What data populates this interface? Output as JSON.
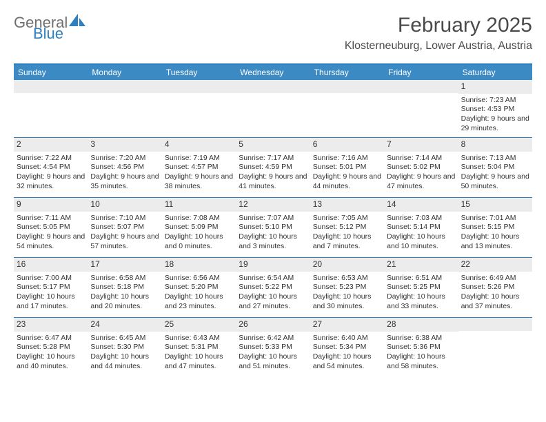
{
  "brand": {
    "part1": "General",
    "part2": "Blue",
    "text_color1": "#6f6f6f",
    "text_color2": "#2d7fbf",
    "icon_color": "#2d7fbf"
  },
  "title": {
    "month_year": "February 2025",
    "location": "Klosterneuburg, Lower Austria, Austria",
    "font_size_title": 30,
    "font_size_loc": 16
  },
  "theme": {
    "header_bar_color": "#3b8ac4",
    "header_text_color": "#ffffff",
    "divider_color": "#2d7fbf",
    "daynum_bg": "#ececec",
    "body_text_color": "#333333",
    "page_bg": "#ffffff",
    "body_font_size": 10.5
  },
  "weekdays": [
    "Sunday",
    "Monday",
    "Tuesday",
    "Wednesday",
    "Thursday",
    "Friday",
    "Saturday"
  ],
  "weeks": [
    [
      {
        "blank": true
      },
      {
        "blank": true
      },
      {
        "blank": true
      },
      {
        "blank": true
      },
      {
        "blank": true
      },
      {
        "blank": true
      },
      {
        "day": 1,
        "sunrise": "7:23 AM",
        "sunset": "4:53 PM",
        "daylight": "9 hours and 29 minutes."
      }
    ],
    [
      {
        "day": 2,
        "sunrise": "7:22 AM",
        "sunset": "4:54 PM",
        "daylight": "9 hours and 32 minutes."
      },
      {
        "day": 3,
        "sunrise": "7:20 AM",
        "sunset": "4:56 PM",
        "daylight": "9 hours and 35 minutes."
      },
      {
        "day": 4,
        "sunrise": "7:19 AM",
        "sunset": "4:57 PM",
        "daylight": "9 hours and 38 minutes."
      },
      {
        "day": 5,
        "sunrise": "7:17 AM",
        "sunset": "4:59 PM",
        "daylight": "9 hours and 41 minutes."
      },
      {
        "day": 6,
        "sunrise": "7:16 AM",
        "sunset": "5:01 PM",
        "daylight": "9 hours and 44 minutes."
      },
      {
        "day": 7,
        "sunrise": "7:14 AM",
        "sunset": "5:02 PM",
        "daylight": "9 hours and 47 minutes."
      },
      {
        "day": 8,
        "sunrise": "7:13 AM",
        "sunset": "5:04 PM",
        "daylight": "9 hours and 50 minutes."
      }
    ],
    [
      {
        "day": 9,
        "sunrise": "7:11 AM",
        "sunset": "5:05 PM",
        "daylight": "9 hours and 54 minutes."
      },
      {
        "day": 10,
        "sunrise": "7:10 AM",
        "sunset": "5:07 PM",
        "daylight": "9 hours and 57 minutes."
      },
      {
        "day": 11,
        "sunrise": "7:08 AM",
        "sunset": "5:09 PM",
        "daylight": "10 hours and 0 minutes."
      },
      {
        "day": 12,
        "sunrise": "7:07 AM",
        "sunset": "5:10 PM",
        "daylight": "10 hours and 3 minutes."
      },
      {
        "day": 13,
        "sunrise": "7:05 AM",
        "sunset": "5:12 PM",
        "daylight": "10 hours and 7 minutes."
      },
      {
        "day": 14,
        "sunrise": "7:03 AM",
        "sunset": "5:14 PM",
        "daylight": "10 hours and 10 minutes."
      },
      {
        "day": 15,
        "sunrise": "7:01 AM",
        "sunset": "5:15 PM",
        "daylight": "10 hours and 13 minutes."
      }
    ],
    [
      {
        "day": 16,
        "sunrise": "7:00 AM",
        "sunset": "5:17 PM",
        "daylight": "10 hours and 17 minutes."
      },
      {
        "day": 17,
        "sunrise": "6:58 AM",
        "sunset": "5:18 PM",
        "daylight": "10 hours and 20 minutes."
      },
      {
        "day": 18,
        "sunrise": "6:56 AM",
        "sunset": "5:20 PM",
        "daylight": "10 hours and 23 minutes."
      },
      {
        "day": 19,
        "sunrise": "6:54 AM",
        "sunset": "5:22 PM",
        "daylight": "10 hours and 27 minutes."
      },
      {
        "day": 20,
        "sunrise": "6:53 AM",
        "sunset": "5:23 PM",
        "daylight": "10 hours and 30 minutes."
      },
      {
        "day": 21,
        "sunrise": "6:51 AM",
        "sunset": "5:25 PM",
        "daylight": "10 hours and 33 minutes."
      },
      {
        "day": 22,
        "sunrise": "6:49 AM",
        "sunset": "5:26 PM",
        "daylight": "10 hours and 37 minutes."
      }
    ],
    [
      {
        "day": 23,
        "sunrise": "6:47 AM",
        "sunset": "5:28 PM",
        "daylight": "10 hours and 40 minutes."
      },
      {
        "day": 24,
        "sunrise": "6:45 AM",
        "sunset": "5:30 PM",
        "daylight": "10 hours and 44 minutes."
      },
      {
        "day": 25,
        "sunrise": "6:43 AM",
        "sunset": "5:31 PM",
        "daylight": "10 hours and 47 minutes."
      },
      {
        "day": 26,
        "sunrise": "6:42 AM",
        "sunset": "5:33 PM",
        "daylight": "10 hours and 51 minutes."
      },
      {
        "day": 27,
        "sunrise": "6:40 AM",
        "sunset": "5:34 PM",
        "daylight": "10 hours and 54 minutes."
      },
      {
        "day": 28,
        "sunrise": "6:38 AM",
        "sunset": "5:36 PM",
        "daylight": "10 hours and 58 minutes."
      },
      {
        "blank": true
      }
    ]
  ],
  "labels": {
    "sunrise_prefix": "Sunrise: ",
    "sunset_prefix": "Sunset: ",
    "daylight_prefix": "Daylight: "
  }
}
